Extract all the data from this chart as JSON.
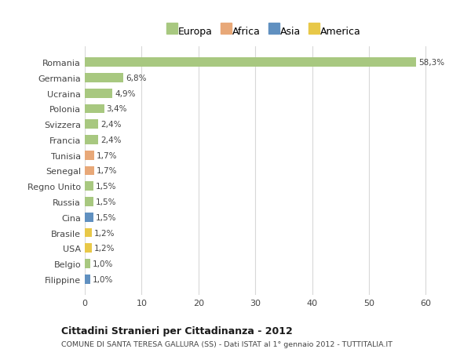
{
  "categories": [
    "Romania",
    "Germania",
    "Ucraina",
    "Polonia",
    "Svizzera",
    "Francia",
    "Tunisia",
    "Senegal",
    "Regno Unito",
    "Russia",
    "Cina",
    "Brasile",
    "USA",
    "Belgio",
    "Filippine"
  ],
  "values": [
    58.3,
    6.8,
    4.9,
    3.4,
    2.4,
    2.4,
    1.7,
    1.7,
    1.5,
    1.5,
    1.5,
    1.2,
    1.2,
    1.0,
    1.0
  ],
  "labels": [
    "58,3%",
    "6,8%",
    "4,9%",
    "3,4%",
    "2,4%",
    "2,4%",
    "1,7%",
    "1,7%",
    "1,5%",
    "1,5%",
    "1,5%",
    "1,2%",
    "1,2%",
    "1,0%",
    "1,0%"
  ],
  "continents": [
    "Europa",
    "Europa",
    "Europa",
    "Europa",
    "Europa",
    "Europa",
    "Africa",
    "Africa",
    "Europa",
    "Europa",
    "Asia",
    "America",
    "America",
    "Europa",
    "Asia"
  ],
  "colors": {
    "Europa": "#a8c880",
    "Africa": "#e8a878",
    "Asia": "#6090c0",
    "America": "#e8c848"
  },
  "legend_order": [
    "Europa",
    "Africa",
    "Asia",
    "America"
  ],
  "title": "Cittadini Stranieri per Cittadinanza - 2012",
  "subtitle": "COMUNE DI SANTA TERESA GALLURA (SS) - Dati ISTAT al 1° gennaio 2012 - TUTTITALIA.IT",
  "xlim": [
    0,
    63
  ],
  "xticks": [
    0,
    10,
    20,
    30,
    40,
    50,
    60
  ],
  "background_color": "#ffffff",
  "grid_color": "#d8d8d8"
}
